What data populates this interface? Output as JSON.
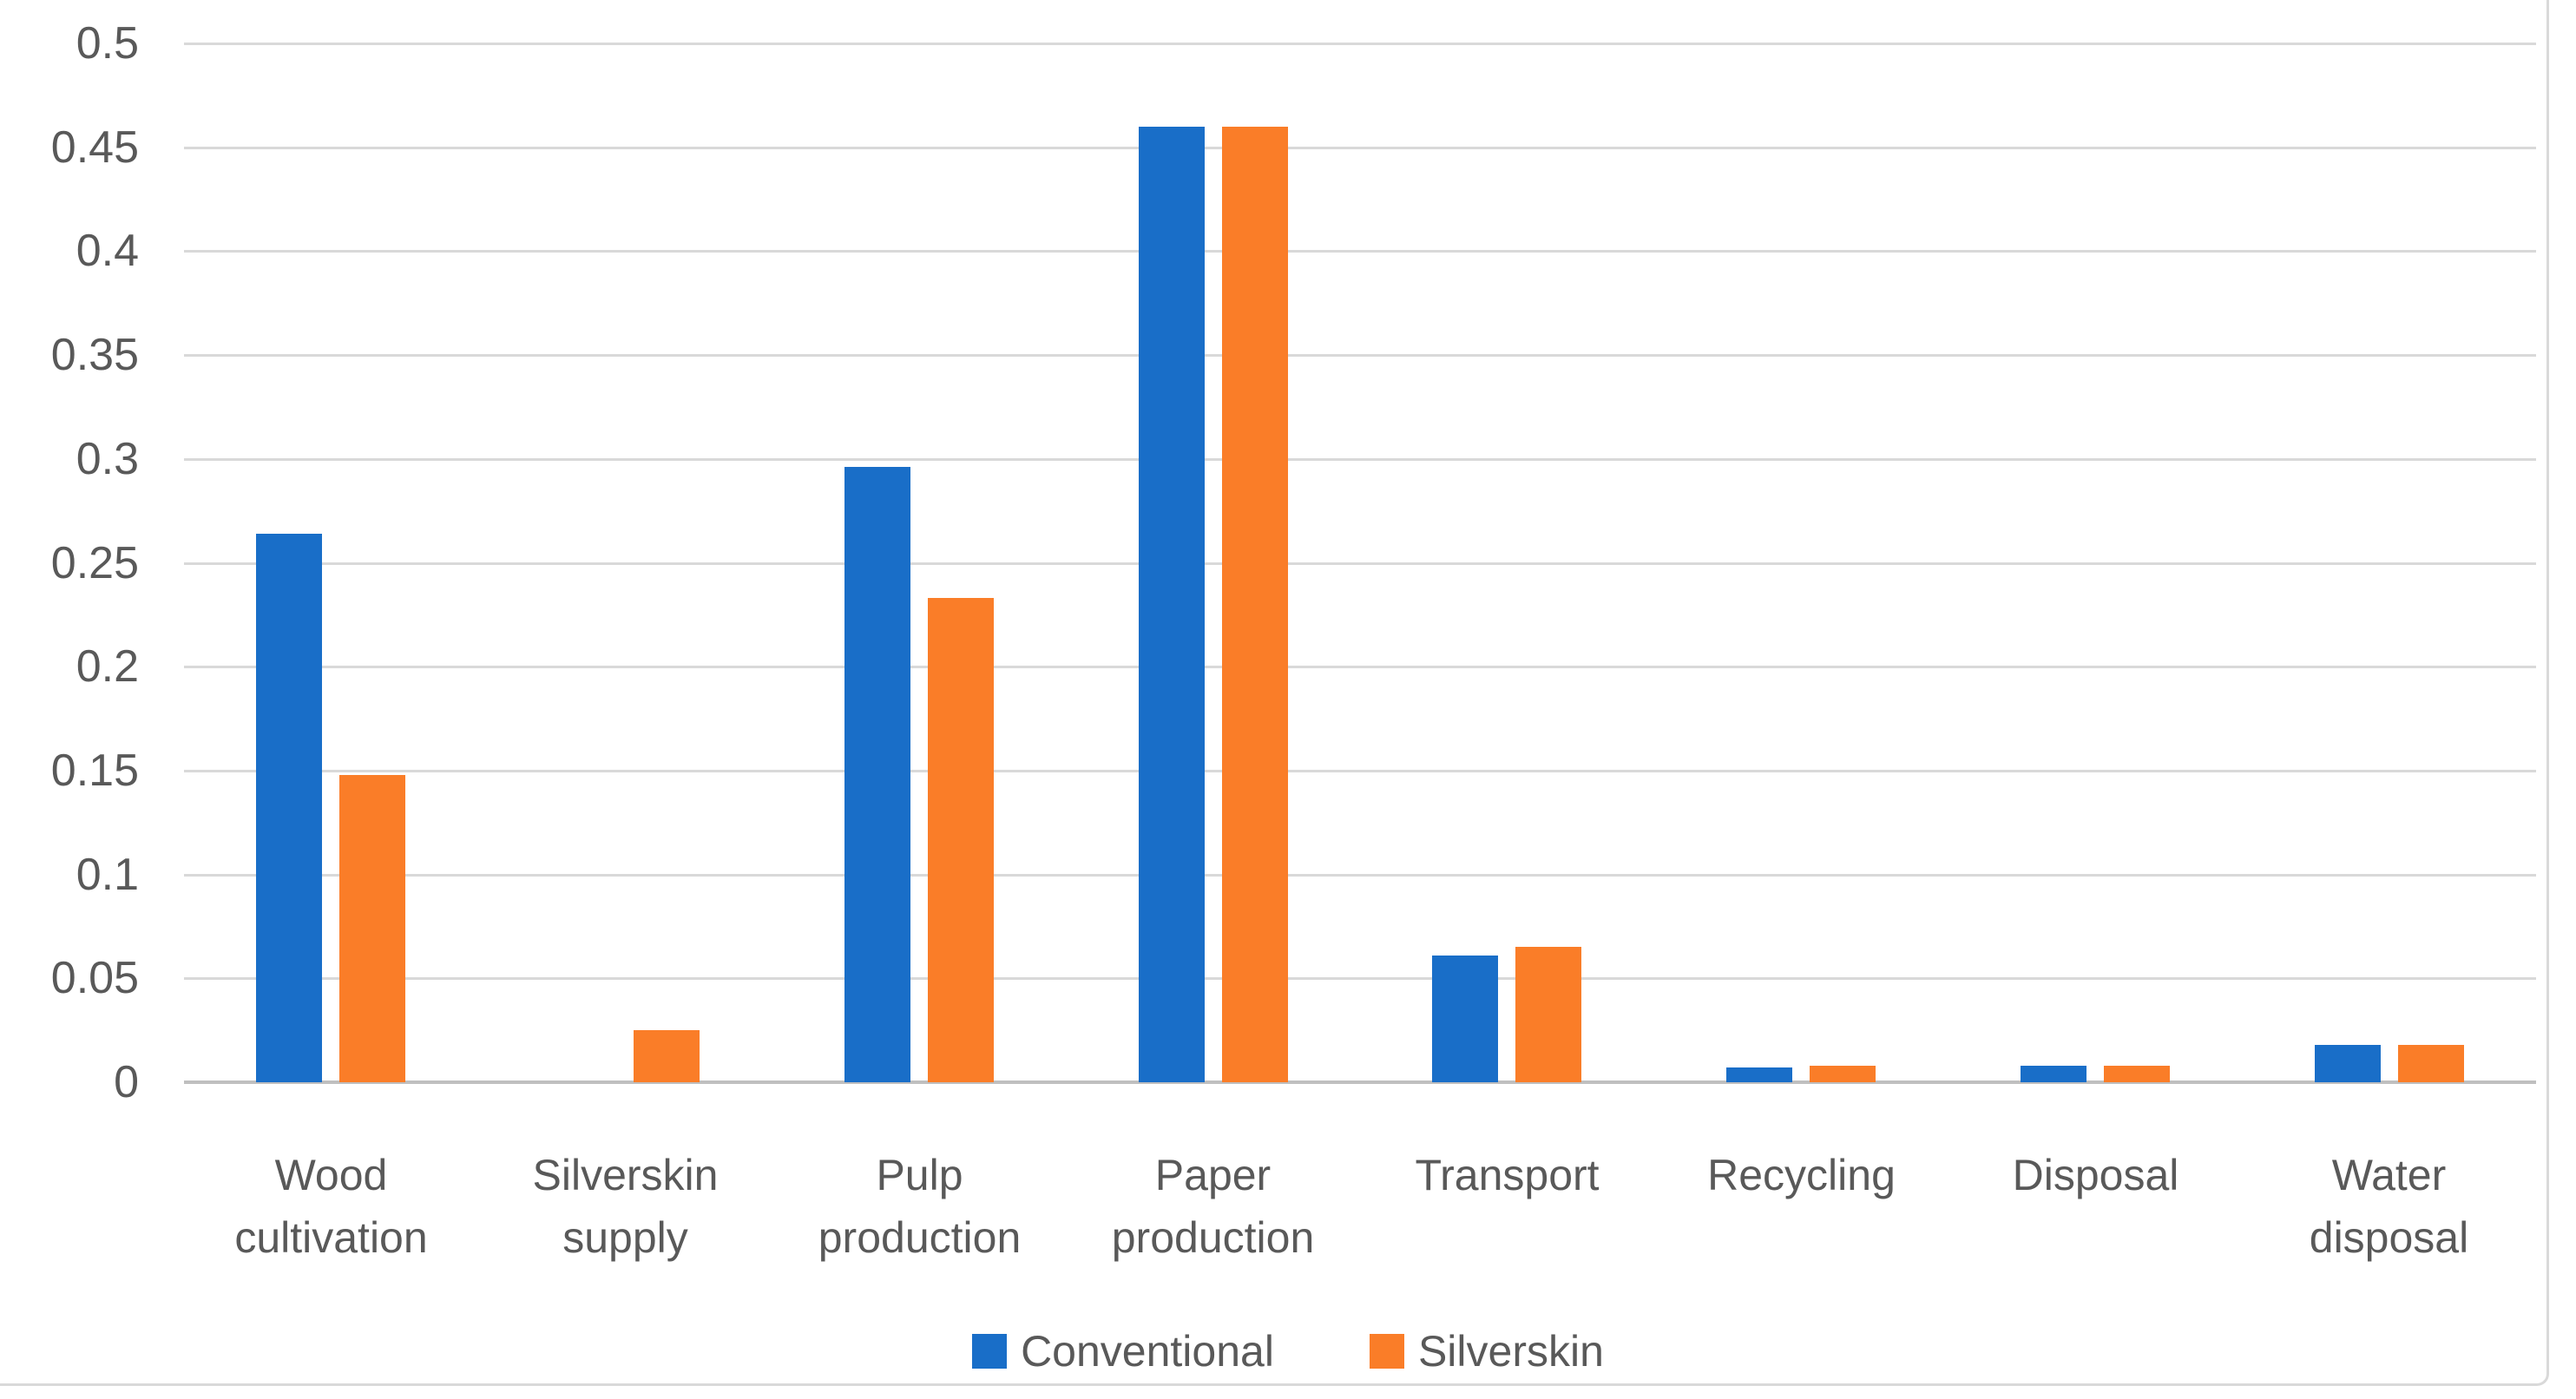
{
  "chart_data": {
    "type": "bar",
    "title": "",
    "xlabel": "",
    "ylabel": "",
    "categories": [
      {
        "label": "Wood cultivation",
        "lines": [
          "Wood",
          "cultivation"
        ]
      },
      {
        "label": "Silverskin supply",
        "lines": [
          "Silverskin",
          "supply"
        ]
      },
      {
        "label": "Pulp production",
        "lines": [
          "Pulp",
          "production"
        ]
      },
      {
        "label": "Paper production",
        "lines": [
          "Paper",
          "production"
        ]
      },
      {
        "label": "Transport",
        "lines": [
          "Transport"
        ]
      },
      {
        "label": "Recycling",
        "lines": [
          "Recycling"
        ]
      },
      {
        "label": "Disposal",
        "lines": [
          "Disposal"
        ]
      },
      {
        "label": "Water disposal",
        "lines": [
          "Water",
          "disposal"
        ]
      }
    ],
    "series": [
      {
        "name": "Conventional",
        "color": "#196EC8",
        "values": [
          0.264,
          0,
          0.296,
          0.46,
          0.061,
          0.007,
          0.008,
          0.018
        ]
      },
      {
        "name": "Silverskin",
        "color": "#FA7D28",
        "values": [
          0.148,
          0.025,
          0.233,
          0.46,
          0.065,
          0.008,
          0.008,
          0.018
        ]
      }
    ],
    "ylim": [
      0,
      0.5
    ],
    "ytick_step": 0.05,
    "ytick_labels": [
      "0.5",
      "0.45",
      "0.4",
      "0.35",
      "0.3",
      "0.25",
      "0.2",
      "0.15",
      "0.1",
      "0.05",
      "0"
    ],
    "grid": true,
    "legend_position": "bottom"
  },
  "colors": {
    "gridline": "#d9d9d9",
    "axis_line": "#bfbfbf",
    "label_text": "#595959",
    "frame_border": "#d9d9d9",
    "background": "#ffffff"
  }
}
